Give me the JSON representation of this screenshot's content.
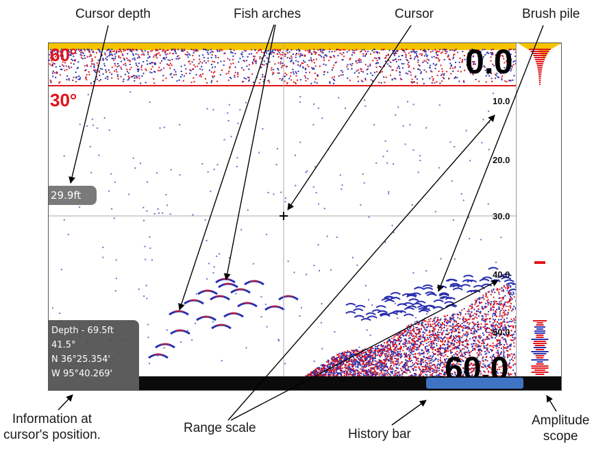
{
  "labels": {
    "cursor_depth": "Cursor depth",
    "fish_arches": "Fish arches",
    "cursor": "Cursor",
    "brush_pile": "Brush pile",
    "info_line1": "Information at",
    "info_line2": "cursor's position.",
    "range_scale": "Range scale",
    "history_bar": "History bar",
    "amplitude_line1": "Amplitude",
    "amplitude_line2": "scope"
  },
  "sonar": {
    "top_depth": "0.0",
    "bottom_depth": "60.0",
    "beam_wide": "60°",
    "beam_narrow": "30°",
    "range_ticks": [
      "10.0",
      "20.0",
      "30.0",
      "40.0",
      "50.0"
    ],
    "cursor_depth_readout": "29.9ft",
    "info": {
      "depth": "Depth - 69.5ft",
      "temp": "41.5°",
      "lat": "N  36°25.354'",
      "lon": "W  95°40.269'"
    },
    "history_position": 0.88,
    "colors": {
      "surface": "#f5c400",
      "echo_red": "#e0141a",
      "echo_blue": "#2a2fb0",
      "history_thumb": "#3f74c4"
    }
  }
}
